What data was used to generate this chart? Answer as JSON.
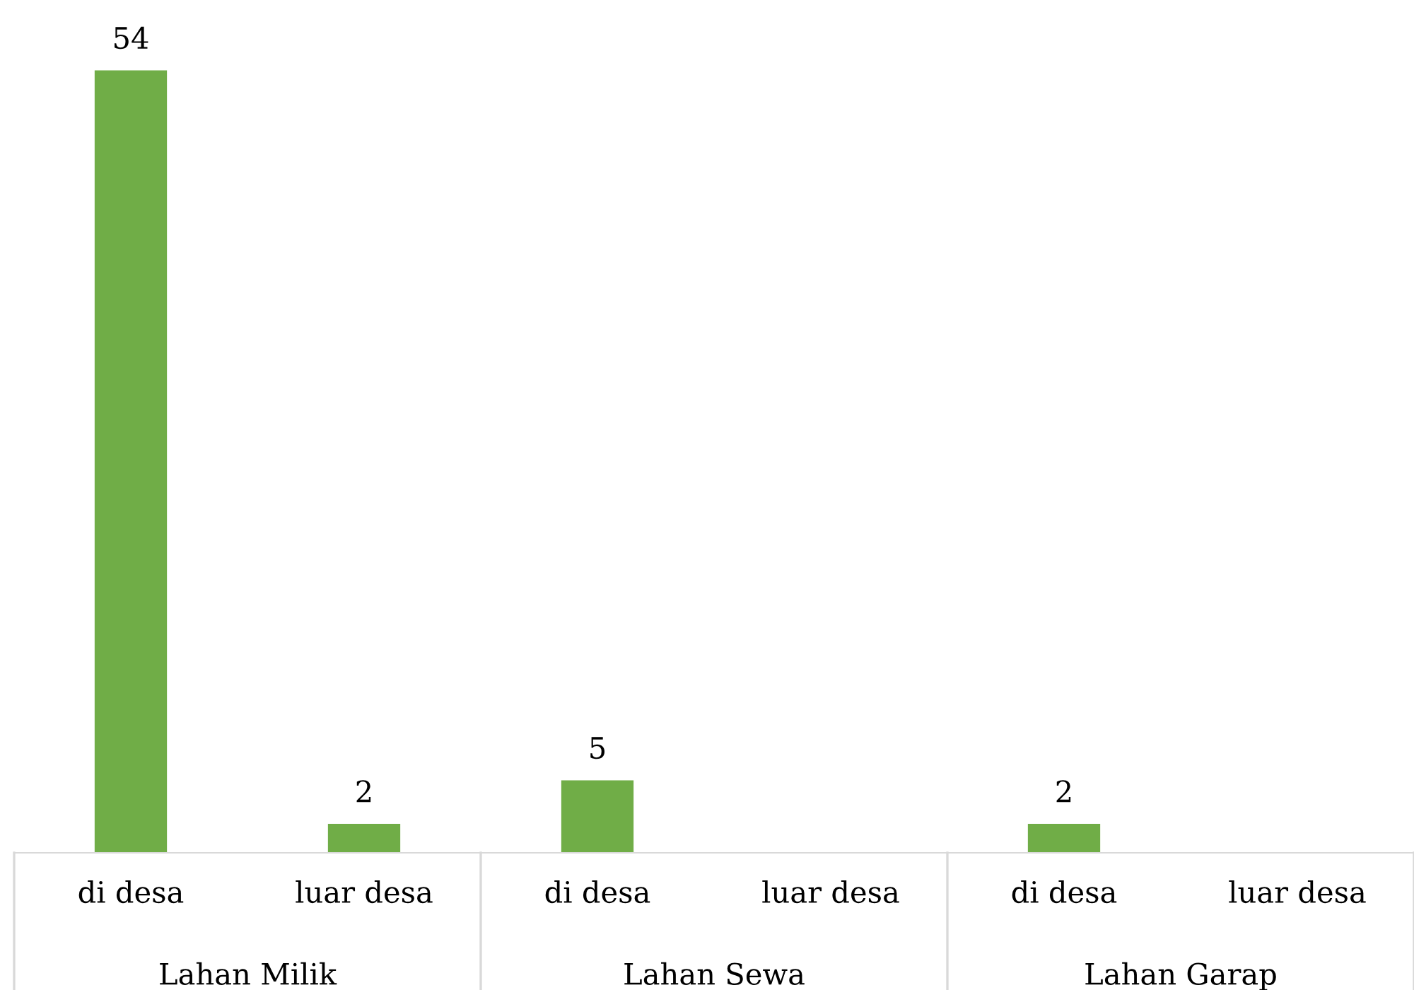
{
  "chart_data": {
    "type": "bar",
    "categories": [
      "di desa",
      "luar desa",
      "di desa",
      "luar desa",
      "di desa",
      "luar desa"
    ],
    "values": [
      54,
      2,
      5,
      null,
      2,
      null
    ],
    "color": "#70ad47",
    "data_labels": true,
    "grid": false,
    "legend": false,
    "annotations": [
      "Lahan Milik",
      "Lahan Sewa",
      "Lahan Garap"
    ]
  }
}
